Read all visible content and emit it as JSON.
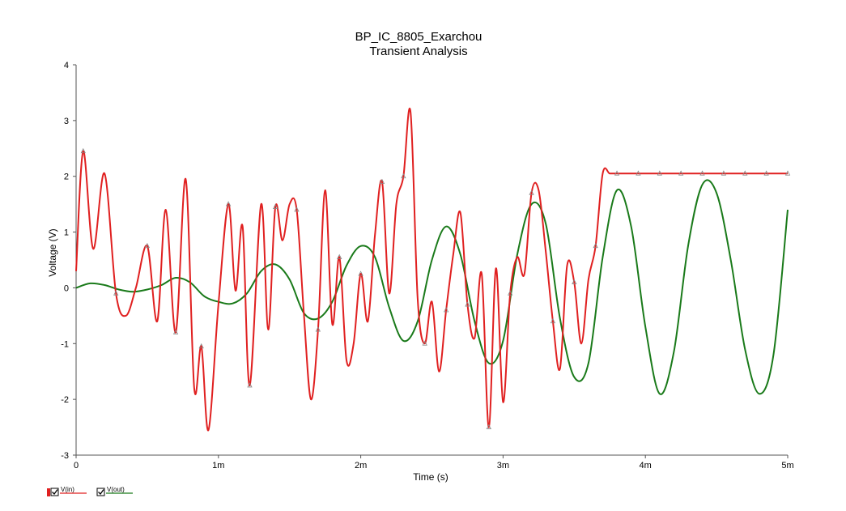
{
  "chart_data": {
    "type": "line",
    "title": "BP_IC_8805_Exarchou",
    "subtitle": "Transient Analysis",
    "xlabel": "Time (s)",
    "ylabel": "Voltage (V)",
    "xlim": [
      0,
      0.005
    ],
    "ylim": [
      -3,
      4
    ],
    "x_ticks": [
      {
        "value": 0,
        "label": "0"
      },
      {
        "value": 0.001,
        "label": "1m"
      },
      {
        "value": 0.002,
        "label": "2m"
      },
      {
        "value": 0.003,
        "label": "3m"
      },
      {
        "value": 0.004,
        "label": "4m"
      },
      {
        "value": 0.005,
        "label": "5m"
      }
    ],
    "y_ticks": [
      {
        "value": 4,
        "label": "4"
      },
      {
        "value": 3,
        "label": "3"
      },
      {
        "value": 2,
        "label": "2"
      },
      {
        "value": 1,
        "label": "1"
      },
      {
        "value": 0,
        "label": "0"
      },
      {
        "value": -1,
        "label": "-1"
      },
      {
        "value": -2,
        "label": "-2"
      },
      {
        "value": -3,
        "label": "-3"
      }
    ],
    "grid": false,
    "legend_position": "bottom-left",
    "series": [
      {
        "name": "V(in)",
        "color": "#e02020",
        "marker": "triangle",
        "x": [
          0,
          5e-05,
          0.00012,
          0.0002,
          0.00028,
          0.00035,
          0.00042,
          0.0005,
          0.00057,
          0.00063,
          0.0007,
          0.00077,
          0.00083,
          0.00088,
          0.00093,
          0.001,
          0.00107,
          0.00112,
          0.00117,
          0.00122,
          0.0013,
          0.00135,
          0.0014,
          0.00145,
          0.0015,
          0.00155,
          0.0016,
          0.00165,
          0.0017,
          0.00175,
          0.0018,
          0.00185,
          0.0019,
          0.00195,
          0.002,
          0.00205,
          0.0021,
          0.00215,
          0.0022,
          0.00225,
          0.0023,
          0.00235,
          0.0024,
          0.00245,
          0.0025,
          0.00255,
          0.0026,
          0.00265,
          0.0027,
          0.00275,
          0.0028,
          0.00285,
          0.0029,
          0.00295,
          0.003,
          0.00305,
          0.0031,
          0.00315,
          0.0032,
          0.00325,
          0.0033,
          0.00335,
          0.0034,
          0.00345,
          0.0035,
          0.00355,
          0.0036,
          0.00365,
          0.0037,
          0.00375,
          0.0038,
          0.00385,
          0.0039,
          0.00395,
          0.004,
          0.00405,
          0.0041,
          0.00415,
          0.0042,
          0.00425,
          0.0043,
          0.00435,
          0.0044,
          0.00445,
          0.0045,
          0.00455,
          0.0046,
          0.00465,
          0.0047,
          0.00475,
          0.0048,
          0.00485,
          0.0049,
          0.00495,
          0.005
        ],
        "values": [
          0.3,
          2.45,
          0.7,
          2.05,
          -0.1,
          -0.5,
          0.0,
          0.75,
          -0.6,
          1.4,
          -0.8,
          1.95,
          -1.8,
          -1.05,
          -2.55,
          -0.3,
          1.5,
          -0.05,
          1.1,
          -1.75,
          1.5,
          -0.75,
          1.45,
          0.85,
          1.5,
          1.4,
          -0.45,
          -2.0,
          -0.75,
          1.75,
          -0.65,
          0.55,
          -1.3,
          -1.0,
          0.25,
          -0.6,
          0.95,
          1.9,
          -0.1,
          1.5,
          2.0,
          3.15,
          -0.2,
          -1.0,
          -0.25,
          -1.5,
          -0.4,
          0.6,
          1.35,
          -0.3,
          -0.9,
          0.25,
          -2.5,
          0.35,
          -2.05,
          -0.1,
          0.55,
          0.25,
          1.7,
          1.75,
          0.65,
          -0.6,
          -1.45,
          0.4,
          0.1,
          -1.0,
          0.15,
          0.75,
          2.05,
          2.05,
          2.05,
          2.05,
          2.05,
          2.05,
          2.05,
          2.05,
          2.05,
          2.05,
          2.05,
          2.05,
          2.05,
          2.05,
          2.05,
          2.05,
          2.05,
          2.05,
          2.05,
          2.05,
          2.05,
          2.05,
          2.05,
          2.05,
          2.05,
          2.05,
          2.05
        ]
      },
      {
        "name": "V(out)",
        "color": "#1a7a1a",
        "marker": "square",
        "x": [
          0,
          0.0001,
          0.0002,
          0.0003,
          0.0004,
          0.0005,
          0.0006,
          0.0007,
          0.0008,
          0.0009,
          0.001,
          0.0011,
          0.0012,
          0.0013,
          0.0014,
          0.0015,
          0.0016,
          0.0017,
          0.0018,
          0.0019,
          0.002,
          0.0021,
          0.0022,
          0.0023,
          0.0024,
          0.0025,
          0.0026,
          0.0027,
          0.0028,
          0.0029,
          0.003,
          0.0031,
          0.0032,
          0.0033,
          0.0034,
          0.0035,
          0.0036,
          0.0037,
          0.0038,
          0.0039,
          0.004,
          0.0041,
          0.0042,
          0.0043,
          0.0044,
          0.0045,
          0.0046,
          0.0047,
          0.0048,
          0.0049,
          0.005
        ],
        "values": [
          0.0,
          0.08,
          0.05,
          -0.03,
          -0.07,
          -0.03,
          0.05,
          0.18,
          0.1,
          -0.15,
          -0.25,
          -0.28,
          -0.1,
          0.3,
          0.42,
          0.15,
          -0.45,
          -0.55,
          -0.25,
          0.4,
          0.75,
          0.55,
          -0.35,
          -0.95,
          -0.6,
          0.5,
          1.1,
          0.6,
          -0.6,
          -1.35,
          -0.95,
          0.6,
          1.5,
          1.15,
          -0.55,
          -1.6,
          -1.35,
          0.55,
          1.75,
          1.1,
          -0.7,
          -1.9,
          -1.15,
          0.75,
          1.85,
          1.7,
          0.5,
          -1.1,
          -1.9,
          -1.2,
          1.4
        ]
      }
    ]
  }
}
